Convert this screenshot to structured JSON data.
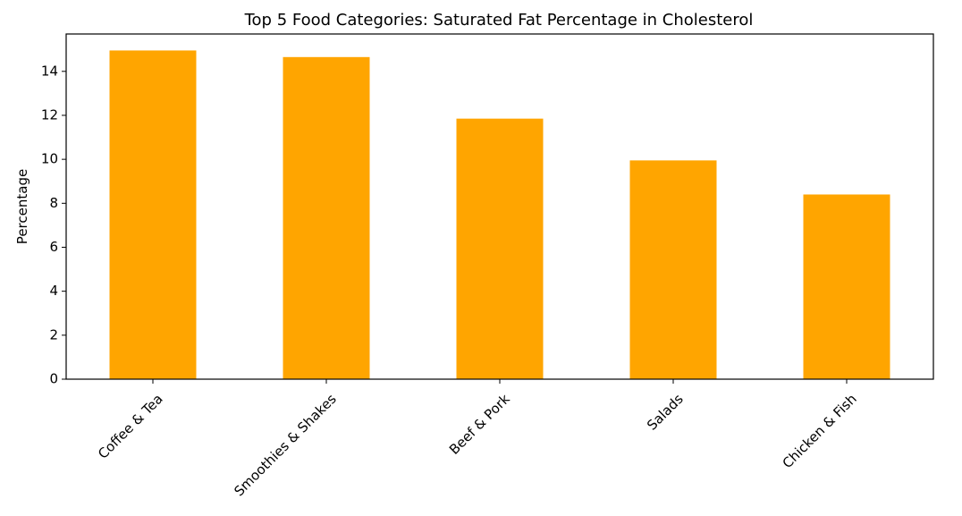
{
  "chart_data": {
    "type": "bar",
    "title": "Top 5 Food Categories: Saturated Fat Percentage in Cholesterol",
    "xlabel": "",
    "ylabel": "Percentage",
    "categories": [
      "Coffee & Tea",
      "Smoothies & Shakes",
      "Beef & Pork",
      "Salads",
      "Chicken & Fish"
    ],
    "values": [
      14.95,
      14.65,
      11.85,
      9.95,
      8.4
    ],
    "ylim": [
      0,
      15.7
    ],
    "yticks": [
      0,
      2,
      4,
      6,
      8,
      10,
      12,
      14
    ],
    "bar_color": "#FFA500",
    "grid": false,
    "legend": "none"
  }
}
